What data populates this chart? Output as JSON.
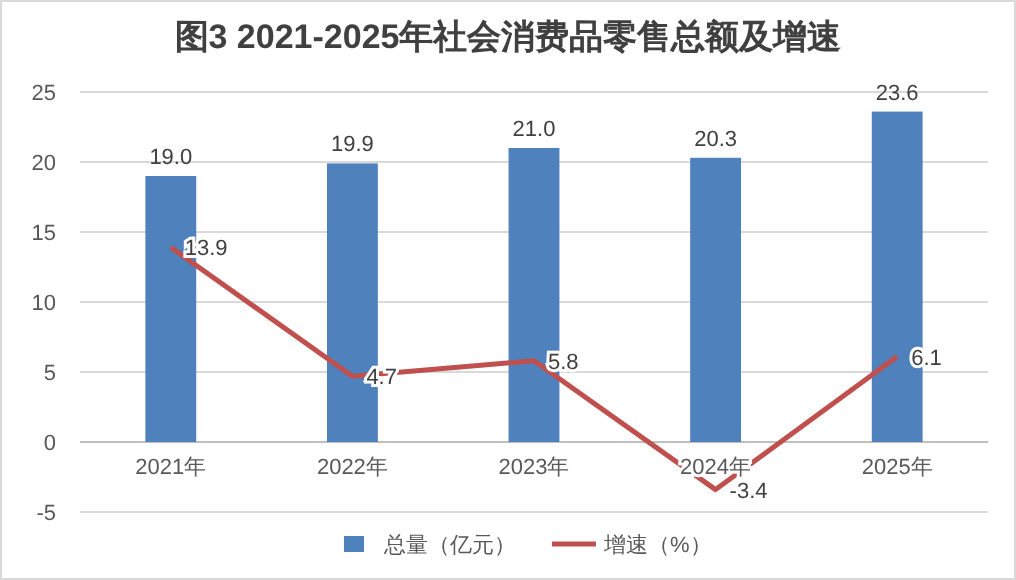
{
  "chart_data": {
    "type": "bar",
    "title": "图3 2021-2025年社会消费品零售总额及增速",
    "categories": [
      "2021年",
      "2022年",
      "2023年",
      "2024年",
      "2025年"
    ],
    "series": [
      {
        "name": "总量（亿元）",
        "color": "#4f81bd",
        "values": [
          19.0,
          19.9,
          21.0,
          20.3,
          23.6
        ],
        "value_labels": [
          "19.0",
          "19.9",
          "21.0",
          "20.3",
          "23.6"
        ]
      },
      {
        "name": "增速（%）",
        "type": "line",
        "color": "#c0504d",
        "values": [
          13.9,
          4.7,
          5.8,
          -3.4,
          6.1
        ],
        "value_labels": [
          "13.9",
          "4.7",
          "5.8",
          "-3.4",
          "6.1"
        ]
      }
    ],
    "ylim": [
      -5,
      25
    ],
    "yticks": [
      -5,
      0,
      5,
      10,
      15,
      20,
      25
    ],
    "grid": "y",
    "legend": "bottom"
  }
}
